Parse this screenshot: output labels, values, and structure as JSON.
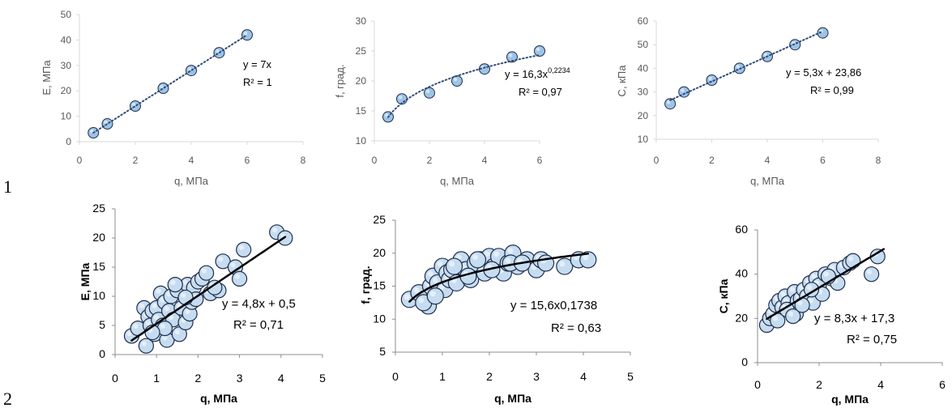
{
  "row_labels": [
    "1",
    "2"
  ],
  "colors": {
    "axis": "#d9d9d9",
    "tick": "#595959",
    "marker_fill": "#9dc3e6",
    "marker_fill_b": "#c6dcf0",
    "marker_stroke": "#1f2d4a",
    "trend_dotted": "#2f4a7a",
    "trend_solid": "#000000"
  },
  "chart_data": [
    {
      "type": "scatter",
      "xlabel": "q, МПа",
      "ylabel": "E, МПа",
      "xlim": [
        0,
        8
      ],
      "xticks": [
        0,
        2,
        4,
        6,
        8
      ],
      "ylim": [
        0,
        50
      ],
      "yticks": [
        0,
        10,
        20,
        30,
        40,
        50
      ],
      "series": [
        {
          "x": [
            0.5,
            1,
            2,
            3,
            4,
            5,
            6
          ],
          "y": [
            3.5,
            7,
            14,
            21,
            28,
            35,
            42
          ]
        }
      ],
      "trendline": {
        "kind": "linear",
        "a": 7,
        "b": 0,
        "from": 0.5,
        "to": 6,
        "style": "dotted"
      },
      "equation": "y = 7x",
      "r2": "R² = 1"
    },
    {
      "type": "scatter",
      "xlabel": "q, МПа",
      "ylabel": "f, град.",
      "xlim": [
        0,
        6
      ],
      "xticks": [
        0,
        2,
        4,
        6
      ],
      "ylim": [
        10,
        30
      ],
      "yticks": [
        10,
        15,
        20,
        25,
        30
      ],
      "series": [
        {
          "x": [
            0.5,
            1,
            2,
            3,
            4,
            5,
            6
          ],
          "y": [
            14,
            17,
            18,
            20,
            22,
            24,
            25
          ]
        }
      ],
      "trendline": {
        "kind": "power",
        "a": 16.3,
        "b": 0.2234,
        "from": 0.5,
        "to": 6,
        "style": "dotted"
      },
      "equation": "y = 16,3x",
      "equation_exp": "0,2234",
      "r2": "R² = 0,97"
    },
    {
      "type": "scatter",
      "xlabel": "q, МПа",
      "ylabel": "C, кПа",
      "xlim": [
        0,
        8
      ],
      "xticks": [
        0,
        2,
        4,
        6,
        8
      ],
      "ylim": [
        10,
        60
      ],
      "yticks": [
        10,
        20,
        30,
        40,
        50,
        60
      ],
      "series": [
        {
          "x": [
            0.5,
            1,
            2,
            3,
            4,
            5,
            6
          ],
          "y": [
            25,
            30,
            35,
            40,
            45,
            50,
            55
          ]
        }
      ],
      "trendline": {
        "kind": "linear",
        "a": 5.3,
        "b": 23.86,
        "from": 0.5,
        "to": 6,
        "style": "dotted"
      },
      "equation": "y = 5,3x + 23,86",
      "r2": "R² = 0,99"
    },
    {
      "type": "scatter",
      "xlabel": "q, МПа",
      "ylabel": "E, МПа",
      "xlim": [
        0,
        5
      ],
      "xticks": [
        0,
        1,
        2,
        3,
        4,
        5
      ],
      "ylim": [
        0,
        25
      ],
      "yticks": [
        0,
        5,
        10,
        15,
        20,
        25
      ],
      "series": [
        {
          "x": [
            0.4,
            0.55,
            0.7,
            0.75,
            0.8,
            0.85,
            0.9,
            0.95,
            1.0,
            1.05,
            1.1,
            1.15,
            1.2,
            1.25,
            1.3,
            1.35,
            1.4,
            1.5,
            1.55,
            1.6,
            1.7,
            1.75,
            1.8,
            1.85,
            1.9,
            1.95,
            2.0,
            2.1,
            2.2,
            2.3,
            2.5,
            2.6,
            2.9,
            3.0,
            3.1,
            3.9,
            4.1,
            1.2,
            0.9,
            1.7,
            2.4,
            1.45
          ],
          "y": [
            3.2,
            4.5,
            8,
            1.5,
            6.5,
            5,
            7.5,
            3.5,
            8,
            6,
            10.5,
            5,
            9,
            2.5,
            7.5,
            10,
            6,
            11,
            3.5,
            8,
            5.5,
            12,
            7,
            9,
            11.5,
            9.5,
            12.5,
            13,
            14,
            10.5,
            11,
            16,
            15,
            13,
            18,
            21,
            20,
            4.5,
            3.8,
            9.8,
            11.5,
            12
          ]
        }
      ],
      "trendline": {
        "kind": "linear",
        "a": 4.8,
        "b": 0.5,
        "from": 0.4,
        "to": 4.1,
        "style": "solid"
      },
      "equation": "y = 4,8x + 0,5",
      "r2": "R² = 0,71"
    },
    {
      "type": "scatter",
      "xlabel": "q, МПа",
      "ylabel": "f, град.",
      "xlim": [
        0,
        5
      ],
      "xticks": [
        0,
        1,
        2,
        3,
        4,
        5
      ],
      "ylim": [
        5,
        25
      ],
      "yticks": [
        5,
        10,
        15,
        20,
        25
      ],
      "series": [
        {
          "x": [
            0.3,
            0.5,
            0.7,
            0.75,
            0.8,
            0.9,
            1.0,
            1.05,
            1.1,
            1.15,
            1.2,
            1.3,
            1.4,
            1.5,
            1.6,
            1.7,
            1.8,
            1.9,
            2.0,
            2.1,
            2.2,
            2.3,
            2.4,
            2.5,
            2.6,
            2.8,
            3.0,
            3.1,
            3.2,
            3.6,
            3.9,
            4.1,
            0.6,
            0.85,
            1.25,
            1.55,
            1.75,
            2.05,
            2.45,
            2.7
          ],
          "y": [
            13,
            14,
            12,
            15,
            16.5,
            15.5,
            18,
            14.5,
            17,
            16,
            17.5,
            15.5,
            19,
            17.5,
            16,
            18.5,
            19,
            17,
            19.5,
            18,
            19.5,
            17,
            18.5,
            20,
            18,
            19,
            17.5,
            19,
            18.5,
            18,
            19,
            19,
            12.5,
            13.5,
            18,
            16.5,
            19,
            17.5,
            18.5,
            18.5
          ]
        }
      ],
      "trendline": {
        "kind": "power",
        "a": 15.6,
        "b": 0.1738,
        "from": 0.3,
        "to": 4.1,
        "style": "solid"
      },
      "equation": "y = 15,6x0,1738",
      "r2": "R² = 0,63"
    },
    {
      "type": "scatter",
      "xlabel": "q, МПа",
      "ylabel": "C, кПа",
      "xlim": [
        0,
        6
      ],
      "xticks": [
        0,
        2,
        4,
        6
      ],
      "ylim": [
        0,
        60
      ],
      "yticks": [
        0,
        20,
        40,
        60
      ],
      "series": [
        {
          "x": [
            0.3,
            0.4,
            0.5,
            0.6,
            0.7,
            0.8,
            0.9,
            1.0,
            1.1,
            1.2,
            1.25,
            1.3,
            1.4,
            1.5,
            1.6,
            1.7,
            1.8,
            1.9,
            2.0,
            2.1,
            2.2,
            2.4,
            2.5,
            2.6,
            2.8,
            3.0,
            3.1,
            3.7,
            3.9,
            0.65,
            0.95,
            1.15,
            1.45,
            1.75,
            2.3
          ],
          "y": [
            17,
            20,
            22,
            26,
            28,
            25,
            30,
            27,
            24,
            32,
            22,
            28,
            29,
            33,
            30,
            36,
            27,
            38,
            35,
            31,
            40,
            38,
            42,
            36,
            43,
            45,
            46,
            40,
            48,
            19,
            24,
            21,
            26,
            33,
            39
          ]
        }
      ],
      "trendline": {
        "kind": "linear",
        "a": 8.3,
        "b": 17.3,
        "from": 0.3,
        "to": 4.1,
        "style": "solid"
      },
      "equation": "y = 8,3x + 17,3",
      "r2": "R² = 0,75"
    }
  ]
}
